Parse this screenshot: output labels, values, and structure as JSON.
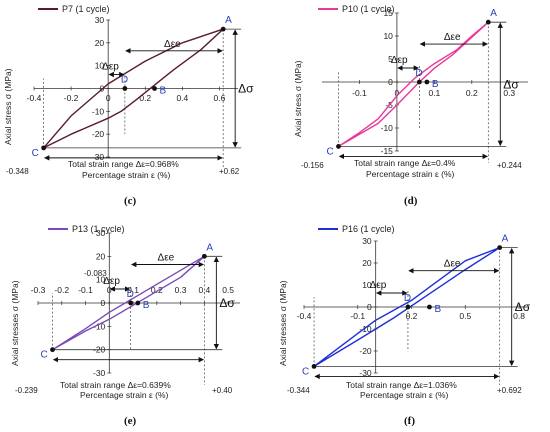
{
  "panels": [
    {
      "id": "c",
      "caption": "(c)",
      "legend": "P7 (1 cycle)",
      "color": "#5a1a33",
      "ylabel": "Axial stress σ (MPa)",
      "xlabel": "Percentage strain ε (%)",
      "total_note": "Total strain range Δε=0.968%",
      "eps_min_label": "-0.348",
      "eps_max_label": "+0.62",
      "extra_label": "",
      "dep_label": "Δεp",
      "dee_label": "Δεe",
      "dsig_label": "Δσ",
      "pt_labels": {
        "A": "A",
        "B": "B",
        "C": "C",
        "D": "D"
      }
    },
    {
      "id": "d",
      "caption": "(d)",
      "legend": "P10 (1 cycle)",
      "color": "#e8389c",
      "ylabel": "Axial stress σ (MPa)",
      "xlabel": "Percentage strain ε (%)",
      "total_note": "Total strain range Δε=0.4%",
      "eps_min_label": "-0.156",
      "eps_max_label": "+0.244",
      "extra_label": "",
      "dep_label": "Δεp",
      "dee_label": "Δεe",
      "dsig_label": "Δσ",
      "pt_labels": {
        "A": "A",
        "B": "B",
        "C": "C",
        "D": "D"
      }
    },
    {
      "id": "e",
      "caption": "(e)",
      "legend": "P13 (1 cycle)",
      "color": "#7a4ab8",
      "ylabel": "Axial stresses σ (MPa)",
      "xlabel": "Percentage strain ε (%)",
      "total_note": "Total strain range Δε=0.639%",
      "eps_min_label": "-0.239",
      "eps_max_label": "+0.40",
      "extra_label": "-0.083",
      "dep_label": "Δεp",
      "dee_label": "Δεe",
      "dsig_label": "Δσ",
      "pt_labels": {
        "A": "A",
        "B": "B",
        "C": "C",
        "D": "D"
      }
    },
    {
      "id": "f",
      "caption": "(f)",
      "legend": "P16 (1 cycle)",
      "color": "#1f2fd6",
      "ylabel": "Axial stresses σ (MPa)",
      "xlabel": "Percentage strain ε (%)",
      "total_note": "Total strain range Δε=1.036%",
      "eps_min_label": "-0.344",
      "eps_max_label": "+0.692",
      "extra_label": "",
      "dep_label": "Δεp",
      "dee_label": "Δεe",
      "dsig_label": "Δσ",
      "pt_labels": {
        "A": "A",
        "B": "B",
        "C": "C",
        "D": "D"
      }
    }
  ],
  "chart_data": [
    {
      "type": "line",
      "legend": "P7 (1 cycle)",
      "x_ticks": [
        -0.4,
        -0.2,
        0,
        0.2,
        0.4,
        0.6
      ],
      "y_ticks": [
        -30,
        -20,
        -10,
        0,
        10,
        20,
        30
      ],
      "xlim": [
        -0.4,
        0.7
      ],
      "ylim": [
        -30,
        30
      ],
      "series": [
        {
          "x": [
            -0.348,
            -0.2,
            0,
            0.2,
            0.4,
            0.62,
            0.5,
            0.35,
            0.15,
            0.07,
            0.0,
            -0.2,
            -0.348
          ],
          "y": [
            -26,
            -12,
            2,
            12,
            20,
            26,
            17,
            8,
            -5,
            -10,
            -13,
            -20,
            -26
          ]
        }
      ],
      "points": {
        "A": [
          0.62,
          26
        ],
        "B": [
          0.25,
          0
        ],
        "C": [
          -0.348,
          -26
        ],
        "D": [
          0.09,
          0
        ]
      },
      "total_strain_range": 0.968
    },
    {
      "type": "line",
      "legend": "P10 (1 cycle)",
      "x_ticks": [
        -0.1,
        0,
        0.1,
        0.2,
        0.3
      ],
      "y_ticks": [
        -15,
        -10,
        -5,
        0,
        5,
        10,
        15
      ],
      "xlim": [
        -0.2,
        0.35
      ],
      "ylim": [
        -15,
        15
      ],
      "series": [
        {
          "x": [
            -0.156,
            -0.1,
            -0.05,
            0.0,
            0.05,
            0.1,
            0.16,
            0.2,
            0.244,
            0.15,
            0.1,
            0.06,
            0.0,
            -0.05,
            -0.156
          ],
          "y": [
            -14,
            -11,
            -8,
            -3,
            1,
            4,
            7,
            10,
            13,
            6,
            3,
            0,
            -5,
            -9,
            -14
          ]
        }
      ],
      "points": {
        "A": [
          0.244,
          13
        ],
        "B": [
          0.08,
          0
        ],
        "C": [
          -0.156,
          -14
        ],
        "D": [
          0.06,
          0
        ]
      },
      "total_strain_range": 0.4
    },
    {
      "type": "line",
      "legend": "P13 (1 cycle)",
      "x_ticks": [
        -0.3,
        -0.2,
        -0.1,
        0,
        0.1,
        0.2,
        0.3,
        0.4,
        0.5
      ],
      "y_ticks": [
        -30,
        -20,
        -10,
        0,
        10,
        20,
        30
      ],
      "xlim": [
        -0.3,
        0.55
      ],
      "ylim": [
        -30,
        30
      ],
      "series": [
        {
          "x": [
            -0.239,
            -0.1,
            0.0,
            0.1,
            0.2,
            0.3,
            0.4,
            0.3,
            0.2,
            0.1,
            0.0,
            -0.1,
            -0.239
          ],
          "y": [
            -20,
            -11,
            -4,
            2,
            8,
            14,
            20,
            11,
            5,
            -1,
            -7,
            -12,
            -20
          ]
        }
      ],
      "points": {
        "A": [
          0.4,
          20
        ],
        "B": [
          0.12,
          0
        ],
        "C": [
          -0.239,
          -20
        ],
        "D": [
          0.09,
          0
        ]
      },
      "total_strain_range": 0.639
    },
    {
      "type": "line",
      "legend": "P16 (1 cycle)",
      "x_ticks": [
        -0.4,
        -0.1,
        0.2,
        0.5,
        0.8
      ],
      "y_ticks": [
        -30,
        -20,
        -10,
        0,
        10,
        20,
        30
      ],
      "xlim": [
        -0.4,
        0.85
      ],
      "ylim": [
        -30,
        30
      ],
      "series": [
        {
          "x": [
            -0.344,
            -0.1,
            0.1,
            0.3,
            0.5,
            0.692,
            0.5,
            0.3,
            0.2,
            0.0,
            -0.1,
            -0.344
          ],
          "y": [
            -27,
            -15,
            -5,
            6,
            17,
            27,
            21,
            9,
            3,
            -6,
            -12,
            -27
          ]
        }
      ],
      "points": {
        "A": [
          0.692,
          27
        ],
        "B": [
          0.3,
          0
        ],
        "C": [
          -0.344,
          -27
        ],
        "D": [
          0.18,
          0
        ]
      },
      "total_strain_range": 1.036
    }
  ]
}
